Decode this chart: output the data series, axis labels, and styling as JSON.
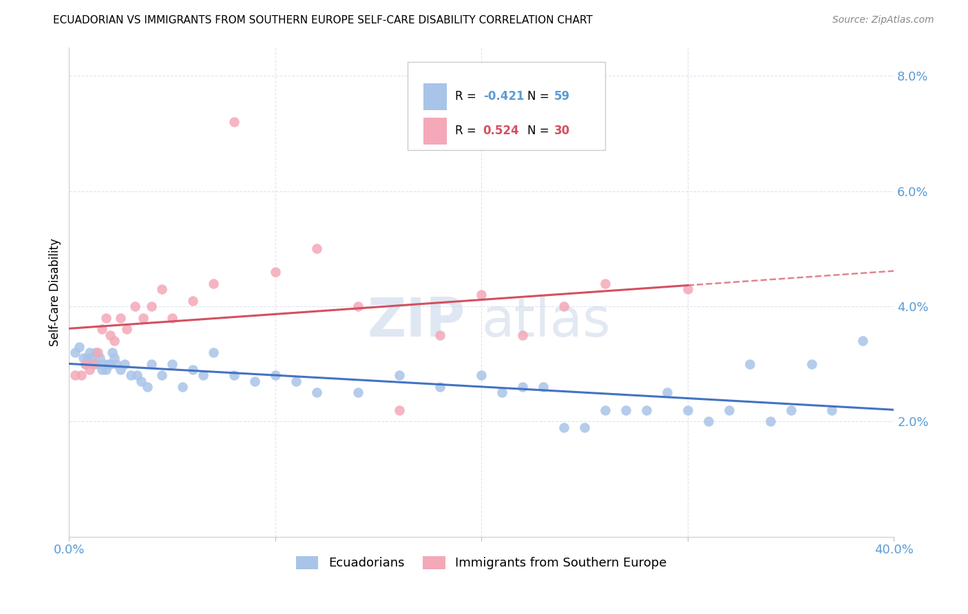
{
  "title": "ECUADORIAN VS IMMIGRANTS FROM SOUTHERN EUROPE SELF-CARE DISABILITY CORRELATION CHART",
  "source": "Source: ZipAtlas.com",
  "ylabel": "Self-Care Disability",
  "watermark_zip": "ZIP",
  "watermark_atlas": "atlas",
  "xlim": [
    0.0,
    0.4
  ],
  "ylim": [
    0.0,
    0.085
  ],
  "xticks": [
    0.0,
    0.1,
    0.2,
    0.3,
    0.4
  ],
  "yticks": [
    0.0,
    0.02,
    0.04,
    0.06,
    0.08
  ],
  "ytick_labels": [
    "",
    "2.0%",
    "4.0%",
    "6.0%",
    "8.0%"
  ],
  "xtick_labels": [
    "0.0%",
    "",
    "",
    "",
    "40.0%"
  ],
  "legend1_label": "Ecuadorians",
  "legend2_label": "Immigrants from Southern Europe",
  "R1": -0.421,
  "N1": 59,
  "R2": 0.524,
  "N2": 30,
  "color_blue": "#a8c4e8",
  "color_pink": "#f4a8b8",
  "color_blue_line": "#4472c4",
  "color_pink_line": "#d45060",
  "axis_color": "#5b9bd5",
  "grid_color": "#dde4ee",
  "blue_scatter_x": [
    0.003,
    0.005,
    0.007,
    0.008,
    0.009,
    0.01,
    0.011,
    0.012,
    0.013,
    0.014,
    0.015,
    0.016,
    0.017,
    0.018,
    0.019,
    0.02,
    0.021,
    0.022,
    0.023,
    0.025,
    0.027,
    0.03,
    0.033,
    0.035,
    0.038,
    0.04,
    0.045,
    0.05,
    0.055,
    0.06,
    0.065,
    0.07,
    0.08,
    0.09,
    0.1,
    0.11,
    0.12,
    0.14,
    0.16,
    0.18,
    0.2,
    0.21,
    0.22,
    0.23,
    0.24,
    0.25,
    0.26,
    0.27,
    0.28,
    0.29,
    0.3,
    0.31,
    0.32,
    0.33,
    0.34,
    0.35,
    0.36,
    0.37,
    0.385
  ],
  "blue_scatter_y": [
    0.032,
    0.033,
    0.031,
    0.03,
    0.031,
    0.032,
    0.031,
    0.03,
    0.032,
    0.03,
    0.031,
    0.029,
    0.03,
    0.029,
    0.03,
    0.03,
    0.032,
    0.031,
    0.03,
    0.029,
    0.03,
    0.028,
    0.028,
    0.027,
    0.026,
    0.03,
    0.028,
    0.03,
    0.026,
    0.029,
    0.028,
    0.032,
    0.028,
    0.027,
    0.028,
    0.027,
    0.025,
    0.025,
    0.028,
    0.026,
    0.028,
    0.025,
    0.026,
    0.026,
    0.019,
    0.019,
    0.022,
    0.022,
    0.022,
    0.025,
    0.022,
    0.02,
    0.022,
    0.03,
    0.02,
    0.022,
    0.03,
    0.022,
    0.034
  ],
  "pink_scatter_x": [
    0.003,
    0.006,
    0.008,
    0.01,
    0.012,
    0.014,
    0.016,
    0.018,
    0.02,
    0.022,
    0.025,
    0.028,
    0.032,
    0.036,
    0.04,
    0.045,
    0.05,
    0.06,
    0.07,
    0.08,
    0.1,
    0.12,
    0.14,
    0.16,
    0.18,
    0.2,
    0.22,
    0.24,
    0.26,
    0.3
  ],
  "pink_scatter_y": [
    0.028,
    0.028,
    0.03,
    0.029,
    0.03,
    0.032,
    0.036,
    0.038,
    0.035,
    0.034,
    0.038,
    0.036,
    0.04,
    0.038,
    0.04,
    0.043,
    0.038,
    0.041,
    0.044,
    0.072,
    0.046,
    0.05,
    0.04,
    0.022,
    0.035,
    0.042,
    0.035,
    0.04,
    0.044,
    0.043
  ]
}
